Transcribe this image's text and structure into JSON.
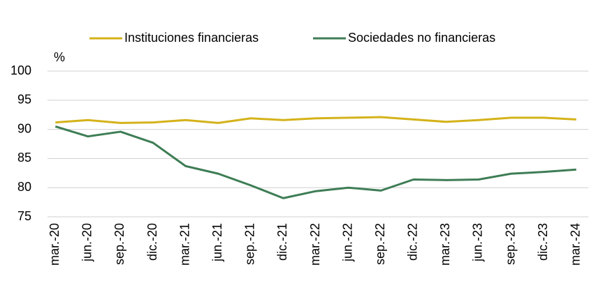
{
  "chart_data": {
    "type": "line",
    "y_unit": "%",
    "categories": [
      "mar.-20",
      "jun.-20",
      "sep.-20",
      "dic.-20",
      "mar.-21",
      "jun.-21",
      "sep.-21",
      "dic.-21",
      "mar.-22",
      "jun.-22",
      "sep.-22",
      "dic.-22",
      "mar.-23",
      "jun.-23",
      "sep.-23",
      "dic.-23",
      "mar.-24"
    ],
    "series": [
      {
        "name": "Instituciones financieras",
        "color": "#d4b21a",
        "values": [
          91.2,
          91.6,
          91.1,
          91.2,
          91.6,
          91.1,
          91.9,
          91.6,
          91.9,
          92.0,
          92.1,
          91.7,
          91.3,
          91.6,
          92.0,
          92.0,
          91.7
        ]
      },
      {
        "name": "Sociedades no financieras",
        "color": "#3e7d55",
        "values": [
          90.5,
          88.8,
          89.6,
          87.7,
          83.7,
          82.4,
          80.4,
          78.2,
          79.4,
          80.0,
          79.5,
          81.4,
          81.3,
          81.4,
          82.4,
          82.7,
          83.1
        ]
      }
    ],
    "ylim": [
      75,
      100
    ],
    "yticks": [
      75,
      80,
      85,
      90,
      95,
      100
    ],
    "grid": true,
    "legend": "top"
  }
}
